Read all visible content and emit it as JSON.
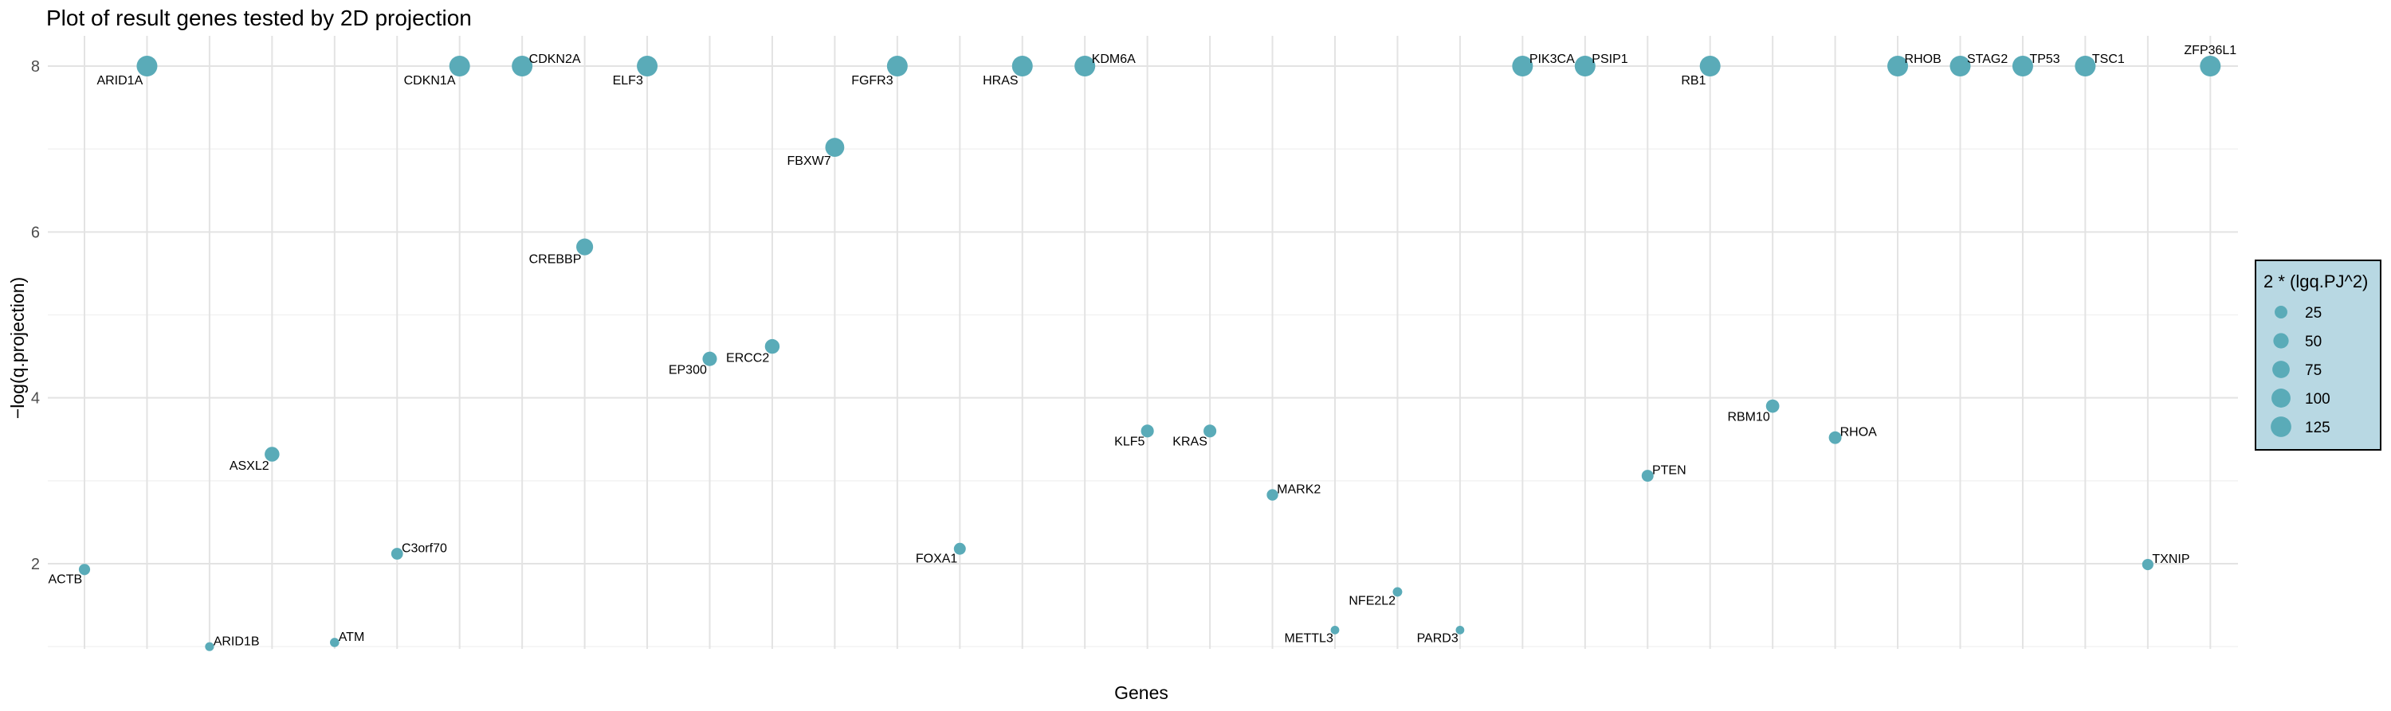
{
  "chart_data": {
    "type": "scatter",
    "title": "Plot of result genes tested by 2D projection",
    "xlabel": "Genes",
    "ylabel": "−log(q.projection)",
    "ylim": [
      0.8,
      8.5
    ],
    "yticks": [
      2,
      4,
      6,
      8
    ],
    "grid": true,
    "x_tick_labels_shown": false,
    "legend": {
      "title": "2 * (lgq.PJ^2)",
      "placement": "right",
      "values": [
        25,
        50,
        75,
        100,
        125
      ],
      "fill": "#b8d8e3",
      "border": "#000000"
    },
    "point_color": "#5aabb8",
    "points": [
      {
        "gene": "ACTB",
        "y": 1.93,
        "size": 15,
        "label_side": "left"
      },
      {
        "gene": "ARID1A",
        "y": 8.0,
        "size": 128,
        "label_side": "left"
      },
      {
        "gene": "ARID1B",
        "y": 1.0,
        "size": 4,
        "label_side": "right"
      },
      {
        "gene": "ASXL2",
        "y": 3.32,
        "size": 44,
        "label_side": "left"
      },
      {
        "gene": "ATM",
        "y": 1.05,
        "size": 5,
        "label_side": "right"
      },
      {
        "gene": "C3orf70",
        "y": 2.12,
        "size": 18,
        "label_side": "right"
      },
      {
        "gene": "CDKN1A",
        "y": 8.0,
        "size": 128,
        "label_side": "left"
      },
      {
        "gene": "CDKN2A",
        "y": 8.0,
        "size": 128,
        "label_side": "right"
      },
      {
        "gene": "CREBBP",
        "y": 5.82,
        "size": 68,
        "label_side": "left"
      },
      {
        "gene": "ELF3",
        "y": 8.0,
        "size": 128,
        "label_side": "left"
      },
      {
        "gene": "EP300",
        "y": 4.47,
        "size": 40,
        "label_side": "left"
      },
      {
        "gene": "ERCC2",
        "y": 4.62,
        "size": 43,
        "label_side": "left"
      },
      {
        "gene": "FBXW7",
        "y": 7.02,
        "size": 99,
        "label_side": "left"
      },
      {
        "gene": "FGFR3",
        "y": 8.0,
        "size": 128,
        "label_side": "left"
      },
      {
        "gene": "FOXA1",
        "y": 2.18,
        "size": 19,
        "label_side": "left"
      },
      {
        "gene": "HRAS",
        "y": 8.0,
        "size": 128,
        "label_side": "left"
      },
      {
        "gene": "KDM6A",
        "y": 8.0,
        "size": 128,
        "label_side": "right"
      },
      {
        "gene": "KLF5",
        "y": 3.6,
        "size": 26,
        "label_side": "left"
      },
      {
        "gene": "KRAS",
        "y": 3.6,
        "size": 26,
        "label_side": "left"
      },
      {
        "gene": "MARK2",
        "y": 2.83,
        "size": 16,
        "label_side": "right"
      },
      {
        "gene": "METTL3",
        "y": 1.2,
        "size": 3,
        "label_side": "left"
      },
      {
        "gene": "NFE2L2",
        "y": 1.66,
        "size": 6,
        "label_side": "left"
      },
      {
        "gene": "PARD3",
        "y": 1.2,
        "size": 3,
        "label_side": "left"
      },
      {
        "gene": "PIK3CA",
        "y": 8.0,
        "size": 128,
        "label_side": "right"
      },
      {
        "gene": "PSIP1",
        "y": 8.0,
        "size": 128,
        "label_side": "right"
      },
      {
        "gene": "PTEN",
        "y": 3.06,
        "size": 19,
        "label_side": "right"
      },
      {
        "gene": "RB1",
        "y": 8.0,
        "size": 128,
        "label_side": "left"
      },
      {
        "gene": "RBM10",
        "y": 3.9,
        "size": 30,
        "label_side": "left"
      },
      {
        "gene": "RHOA",
        "y": 3.52,
        "size": 25,
        "label_side": "right"
      },
      {
        "gene": "RHOB",
        "y": 8.0,
        "size": 128,
        "label_side": "right"
      },
      {
        "gene": "STAG2",
        "y": 8.0,
        "size": 128,
        "label_side": "right"
      },
      {
        "gene": "TP53",
        "y": 8.0,
        "size": 128,
        "label_side": "right"
      },
      {
        "gene": "TSC1",
        "y": 8.0,
        "size": 128,
        "label_side": "right"
      },
      {
        "gene": "TXNIP",
        "y": 1.99,
        "size": 15,
        "label_side": "right"
      },
      {
        "gene": "ZFP36L1",
        "y": 8.0,
        "size": 128,
        "label_side": "above"
      }
    ]
  }
}
